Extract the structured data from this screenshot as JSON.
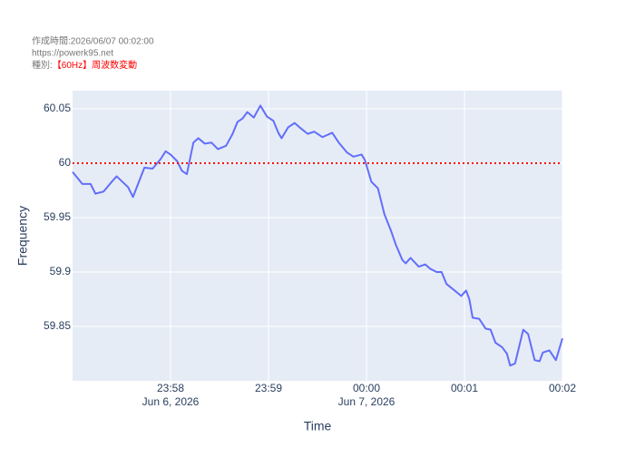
{
  "header": {
    "created": "作成時間:2026/06/07 00:02:00",
    "url": "https://powerk95.net",
    "kind_label": "種別:",
    "kind": "【60Hz】周波数変動"
  },
  "chart_data": {
    "type": "line",
    "x_label": "Time",
    "y_label": "Frequency",
    "x": [
      "2026-06-06T23:57:00",
      "2026-06-06T23:57:06",
      "2026-06-06T23:57:11",
      "2026-06-06T23:57:14",
      "2026-06-06T23:57:19",
      "2026-06-06T23:57:24",
      "2026-06-06T23:57:27",
      "2026-06-06T23:57:34",
      "2026-06-06T23:57:37",
      "2026-06-06T23:57:44",
      "2026-06-06T23:57:49",
      "2026-06-06T23:57:54",
      "2026-06-06T23:57:57",
      "2026-06-06T23:58:00",
      "2026-06-06T23:58:04",
      "2026-06-06T23:58:07",
      "2026-06-06T23:58:10",
      "2026-06-06T23:58:14",
      "2026-06-06T23:58:17",
      "2026-06-06T23:58:21",
      "2026-06-06T23:58:25",
      "2026-06-06T23:58:29",
      "2026-06-06T23:58:34",
      "2026-06-06T23:58:38",
      "2026-06-06T23:58:41",
      "2026-06-06T23:58:44",
      "2026-06-06T23:58:47",
      "2026-06-06T23:58:51",
      "2026-06-06T23:58:55",
      "2026-06-06T23:58:59",
      "2026-06-06T23:59:03",
      "2026-06-06T23:59:06",
      "2026-06-06T23:59:08",
      "2026-06-06T23:59:12",
      "2026-06-06T23:59:16",
      "2026-06-06T23:59:19",
      "2026-06-06T23:59:24",
      "2026-06-06T23:59:28",
      "2026-06-06T23:59:33",
      "2026-06-06T23:59:39",
      "2026-06-06T23:59:43",
      "2026-06-06T23:59:48",
      "2026-06-06T23:59:52",
      "2026-06-06T23:59:57",
      "2026-06-06T23:59:59",
      "2026-06-07T00:00:03",
      "2026-06-07T00:00:07",
      "2026-06-07T00:00:11",
      "2026-06-07T00:00:15",
      "2026-06-07T00:00:18",
      "2026-06-07T00:00:22",
      "2026-06-07T00:00:24",
      "2026-06-07T00:00:27",
      "2026-06-07T00:00:32",
      "2026-06-07T00:00:36",
      "2026-06-07T00:00:39",
      "2026-06-07T00:00:43",
      "2026-06-07T00:00:46",
      "2026-06-07T00:00:49",
      "2026-06-07T00:00:54",
      "2026-06-07T00:00:58",
      "2026-06-07T00:01:01",
      "2026-06-07T00:01:03",
      "2026-06-07T00:01:05",
      "2026-06-07T00:01:09",
      "2026-06-07T00:01:13",
      "2026-06-07T00:01:16",
      "2026-06-07T00:01:19",
      "2026-06-07T00:01:23",
      "2026-06-07T00:01:26",
      "2026-06-07T00:01:28",
      "2026-06-07T00:01:31",
      "2026-06-07T00:01:36",
      "2026-06-07T00:01:39",
      "2026-06-07T00:01:43",
      "2026-06-07T00:01:46",
      "2026-06-07T00:01:48",
      "2026-06-07T00:01:52",
      "2026-06-07T00:01:56",
      "2026-06-07T00:02:00"
    ],
    "series": [
      {
        "name": "Frequency",
        "color": "#636efa",
        "values": [
          59.992,
          59.981,
          59.981,
          59.972,
          59.974,
          59.983,
          59.988,
          59.978,
          59.969,
          59.996,
          59.995,
          60.004,
          60.011,
          60.008,
          60.002,
          59.993,
          59.99,
          60.019,
          60.023,
          60.018,
          60.019,
          60.013,
          60.016,
          60.027,
          60.038,
          60.041,
          60.047,
          60.042,
          60.053,
          60.043,
          60.039,
          60.028,
          60.023,
          60.033,
          60.037,
          60.033,
          60.027,
          60.029,
          60.024,
          60.028,
          60.019,
          60.01,
          60.006,
          60.008,
          60.003,
          59.983,
          59.977,
          59.953,
          59.938,
          59.925,
          59.911,
          59.908,
          59.913,
          59.905,
          59.907,
          59.903,
          59.9,
          59.9,
          59.889,
          59.883,
          59.878,
          59.883,
          59.875,
          59.858,
          59.857,
          59.848,
          59.847,
          59.835,
          59.831,
          59.825,
          59.814,
          59.816,
          59.847,
          59.843,
          59.819,
          59.818,
          59.826,
          59.828,
          59.819,
          59.839
        ]
      }
    ],
    "xlim": [
      "2026-06-06T23:57:00",
      "2026-06-07T00:02:00"
    ],
    "xticks": [
      {
        "value": "2026-06-06T23:58:00",
        "label": "23:58",
        "date_label": "Jun 6, 2026"
      },
      {
        "value": "2026-06-06T23:59:00",
        "label": "23:59"
      },
      {
        "value": "2026-06-07T00:00:00",
        "label": "00:00",
        "date_label": "Jun 7, 2026"
      },
      {
        "value": "2026-06-07T00:01:00",
        "label": "00:01"
      },
      {
        "value": "2026-06-07T00:02:00",
        "label": "00:02"
      }
    ],
    "ylim": [
      59.8,
      60.0667
    ],
    "yticks": [
      59.85,
      59.9,
      59.95,
      60,
      60.05
    ],
    "hline": {
      "value": 60,
      "color": "#ff0000"
    },
    "grid": true
  }
}
